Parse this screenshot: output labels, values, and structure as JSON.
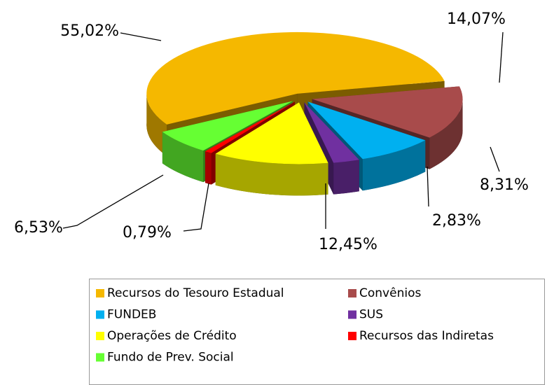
{
  "chart_data": {
    "type": "pie",
    "categories": [
      "Recursos do Tesouro Estadual",
      "Convênios",
      "FUNDEB",
      "SUS",
      "Operações de Crédito",
      "Recursos das Indiretas",
      "Fundo de Prev. Social"
    ],
    "values": [
      55.02,
      14.07,
      8.31,
      2.83,
      12.45,
      0.79,
      6.53
    ],
    "value_labels": [
      "55,02%",
      "14,07%",
      "8,31%",
      "2,83%",
      "12,45%",
      "0,79%",
      "6,53%"
    ],
    "colors": [
      "#f5b800",
      "#a84b4b",
      "#00b0f0",
      "#7030a0",
      "#ffff00",
      "#ff0000",
      "#66ff33"
    ],
    "legend": "bottom"
  }
}
